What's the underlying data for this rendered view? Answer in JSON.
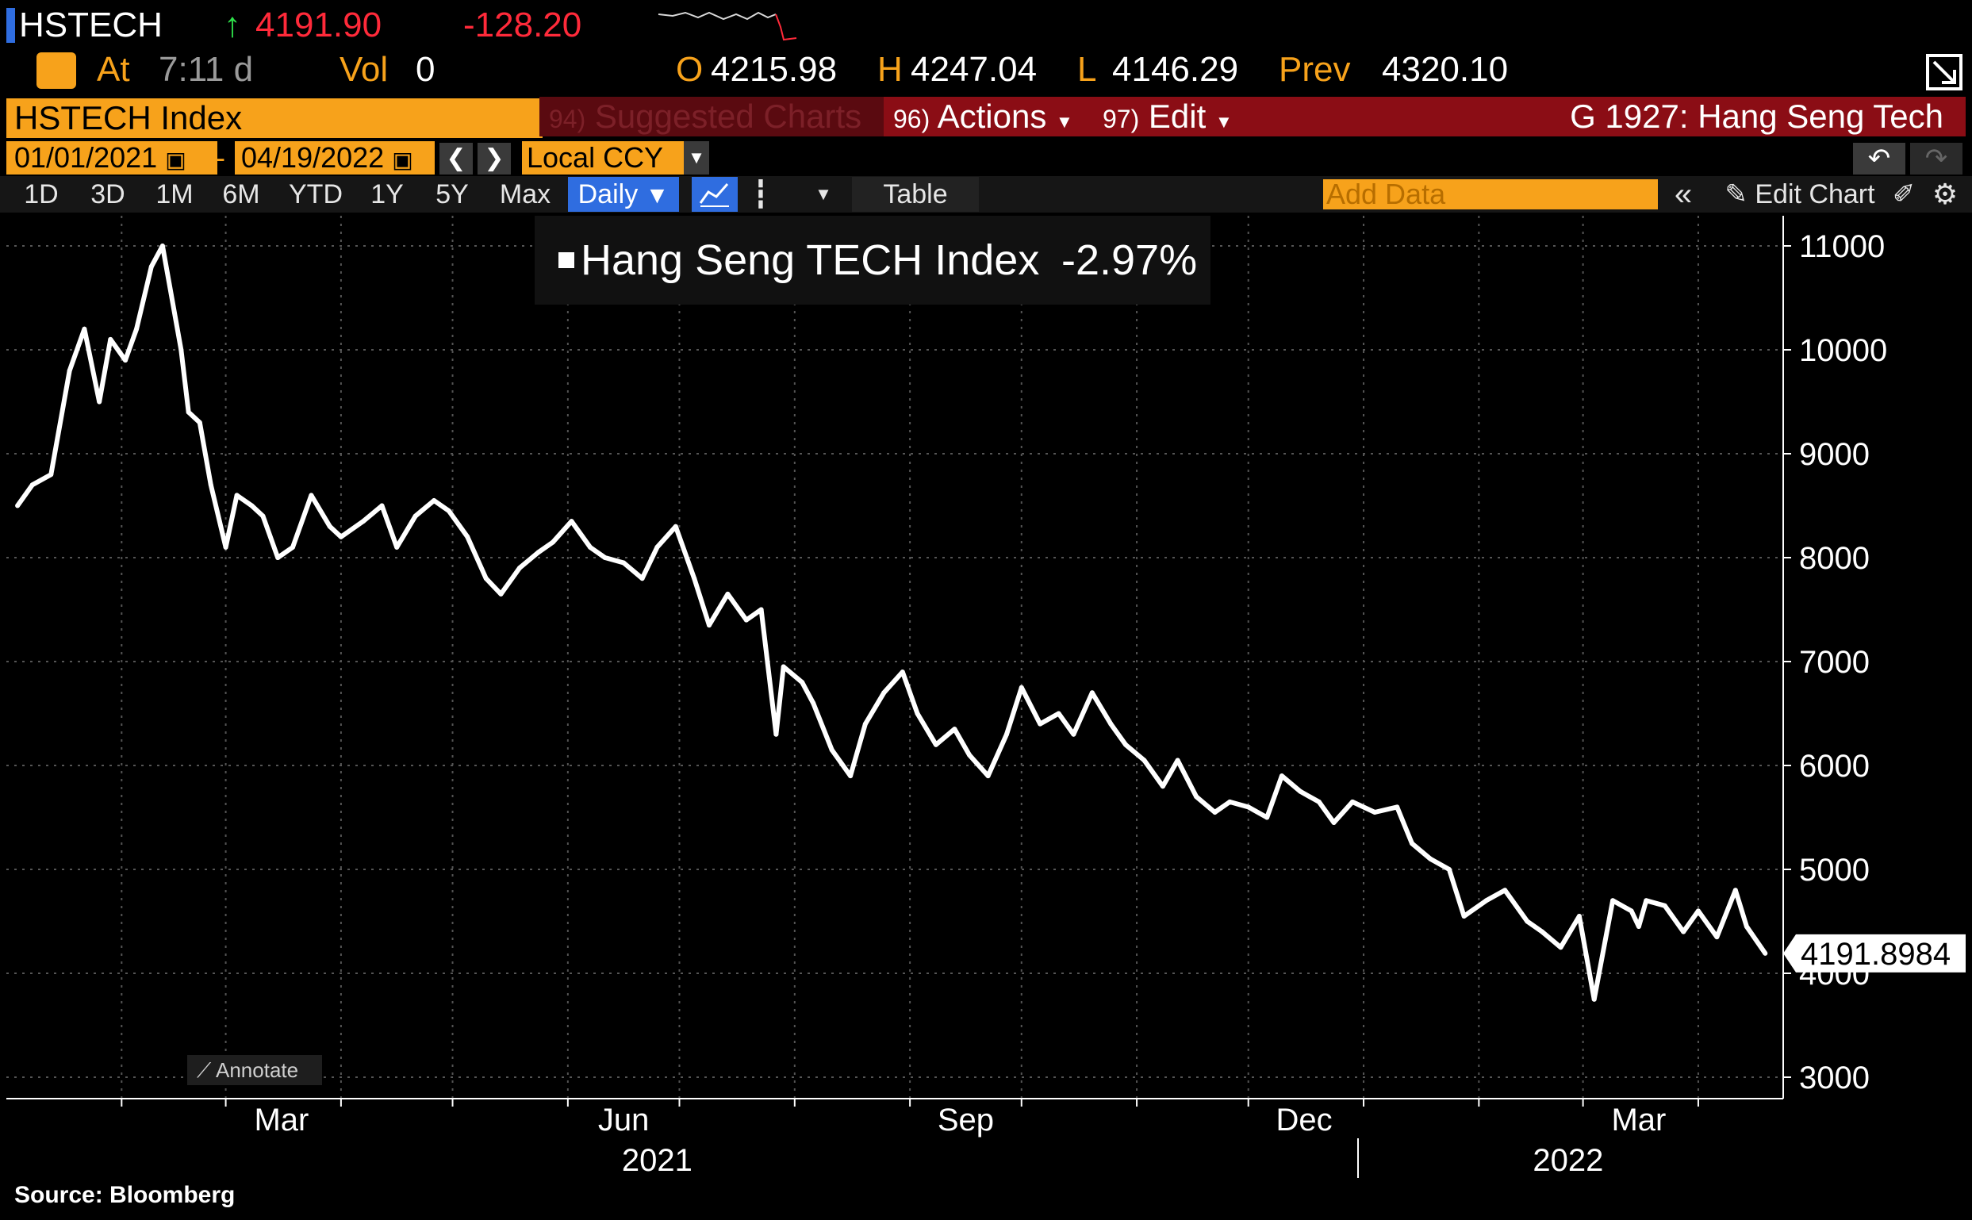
{
  "header": {
    "ticker": "HSTECH",
    "last_arrow": "↑",
    "last_price": "4191.90",
    "change": "-128.20",
    "at_label": "At",
    "time": "7:11 d",
    "vol_label": "Vol",
    "vol_value": "0",
    "open_label": "O",
    "open_value": "4215.98",
    "high_label": "H",
    "high_value": "4247.04",
    "low_label": "L",
    "low_value": "4146.29",
    "prev_label": "Prev",
    "prev_value": "4320.10"
  },
  "toolbar": {
    "security": "HSTECH Index",
    "suggested_num": "94)",
    "suggested_label": "Suggested Charts",
    "actions_num": "96)",
    "actions_label": "Actions",
    "edit_num": "97)",
    "edit_label": "Edit",
    "chart_title": "G 1927: Hang Seng Tech"
  },
  "range": {
    "start_date": "01/01/2021",
    "separator": "-",
    "end_date": "04/19/2022",
    "currency": "Local CCY"
  },
  "periods": [
    "1D",
    "3D",
    "1M",
    "6M",
    "YTD",
    "1Y",
    "5Y",
    "Max"
  ],
  "controls": {
    "frequency": "Daily",
    "table_label": "Table",
    "add_data_placeholder": "Add Data",
    "edit_chart_label": "Edit Chart",
    "annotate_label": "Annotate"
  },
  "legend": {
    "series_name": "Hang Seng TECH Index",
    "series_change": "-2.97%"
  },
  "last_value_label": "4191.8984",
  "source": "Source:  Bloomberg",
  "colors": {
    "orange": "#f7a21b",
    "dark_red": "#8b0d15",
    "red_text": "#ff2a3a",
    "green": "#2ee04a",
    "blue_bar": "#2f6de0"
  },
  "chart_data": {
    "type": "line",
    "y_ticks": [
      "3000",
      "4000",
      "5000",
      "6000",
      "7000",
      "8000",
      "9000",
      "10000",
      "11000"
    ],
    "ylim": [
      2800,
      11250
    ],
    "x_ticks": [
      "Mar",
      "Jun",
      "Sep",
      "Dec",
      "Mar"
    ],
    "x_tick_dates": [
      "2021-03-01",
      "2021-06-01",
      "2021-09-01",
      "2021-12-01",
      "2022-03-01"
    ],
    "years": [
      "2021",
      "2022"
    ],
    "xlim": [
      "2021-01-01",
      "2022-04-20"
    ],
    "grid": true,
    "series": [
      {
        "name": "Hang Seng TECH Index",
        "x": [
          "2021-01-04",
          "2021-01-08",
          "2021-01-13",
          "2021-01-18",
          "2021-01-22",
          "2021-01-26",
          "2021-01-29",
          "2021-02-02",
          "2021-02-05",
          "2021-02-09",
          "2021-02-12",
          "2021-02-17",
          "2021-02-19",
          "2021-02-22",
          "2021-02-25",
          "2021-03-01",
          "2021-03-04",
          "2021-03-08",
          "2021-03-11",
          "2021-03-15",
          "2021-03-19",
          "2021-03-24",
          "2021-03-29",
          "2021-04-01",
          "2021-04-07",
          "2021-04-12",
          "2021-04-16",
          "2021-04-21",
          "2021-04-26",
          "2021-04-30",
          "2021-05-05",
          "2021-05-10",
          "2021-05-14",
          "2021-05-19",
          "2021-05-24",
          "2021-05-28",
          "2021-06-02",
          "2021-06-07",
          "2021-06-11",
          "2021-06-16",
          "2021-06-21",
          "2021-06-25",
          "2021-06-30",
          "2021-07-05",
          "2021-07-09",
          "2021-07-14",
          "2021-07-19",
          "2021-07-23",
          "2021-07-27",
          "2021-07-29",
          "2021-08-03",
          "2021-08-06",
          "2021-08-11",
          "2021-08-16",
          "2021-08-20",
          "2021-08-25",
          "2021-08-30",
          "2021-09-03",
          "2021-09-08",
          "2021-09-13",
          "2021-09-17",
          "2021-09-22",
          "2021-09-27",
          "2021-10-01",
          "2021-10-06",
          "2021-10-11",
          "2021-10-15",
          "2021-10-20",
          "2021-10-25",
          "2021-10-29",
          "2021-11-03",
          "2021-11-08",
          "2021-11-12",
          "2021-11-17",
          "2021-11-22",
          "2021-11-26",
          "2021-12-01",
          "2021-12-06",
          "2021-12-10",
          "2021-12-15",
          "2021-12-20",
          "2021-12-24",
          "2021-12-29",
          "2022-01-04",
          "2022-01-10",
          "2022-01-14",
          "2022-01-19",
          "2022-01-24",
          "2022-01-28",
          "2022-02-03",
          "2022-02-08",
          "2022-02-14",
          "2022-02-18",
          "2022-02-23",
          "2022-02-28",
          "2022-03-04",
          "2022-03-09",
          "2022-03-14",
          "2022-03-16",
          "2022-03-18",
          "2022-03-23",
          "2022-03-28",
          "2022-04-01",
          "2022-04-06",
          "2022-04-11",
          "2022-04-14",
          "2022-04-19"
        ],
        "values": [
          8500,
          8700,
          8800,
          9800,
          10200,
          9500,
          10100,
          9900,
          10200,
          10800,
          11000,
          10000,
          9400,
          9300,
          8700,
          8100,
          8600,
          8500,
          8400,
          8000,
          8100,
          8600,
          8300,
          8200,
          8350,
          8500,
          8100,
          8400,
          8550,
          8450,
          8200,
          7800,
          7650,
          7900,
          8050,
          8150,
          8350,
          8100,
          8000,
          7950,
          7800,
          8100,
          8300,
          7800,
          7350,
          7650,
          7400,
          7500,
          6300,
          6950,
          6800,
          6600,
          6150,
          5900,
          6400,
          6700,
          6900,
          6500,
          6200,
          6350,
          6100,
          5900,
          6300,
          6750,
          6400,
          6500,
          6300,
          6700,
          6400,
          6200,
          6050,
          5800,
          6050,
          5700,
          5550,
          5650,
          5600,
          5500,
          5900,
          5750,
          5650,
          5450,
          5650,
          5550,
          5600,
          5250,
          5100,
          5000,
          4550,
          4700,
          4800,
          4500,
          4400,
          4250,
          4550,
          3750,
          4700,
          4600,
          4450,
          4700,
          4650,
          4400,
          4600,
          4350,
          4800,
          4450,
          4192
        ]
      }
    ]
  }
}
